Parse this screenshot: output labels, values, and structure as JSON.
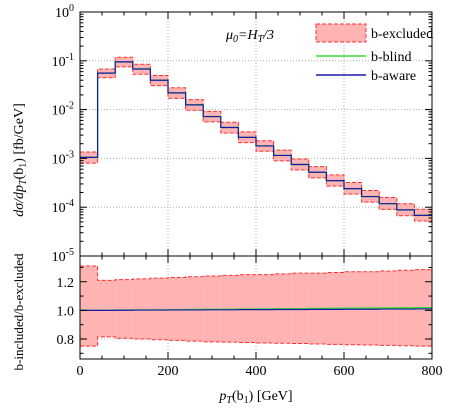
{
  "chart_data": [
    {
      "type": "line",
      "panel": "main",
      "yscale": "log",
      "ylabel": "dσ/dp_T(b_1) [fb/GeV]",
      "annotation": "μ0=HT/3",
      "xlim": [
        0,
        800
      ],
      "ylim": [
        1e-05,
        1
      ],
      "y_tick_labels": [
        "10^-5",
        "10^-4",
        "10^-3",
        "10^-2",
        "10^-1",
        "10^0"
      ],
      "grid": true,
      "legend_position": "top-right",
      "x_bins": [
        0,
        40,
        80,
        120,
        160,
        200,
        240,
        280,
        320,
        360,
        400,
        440,
        480,
        520,
        560,
        600,
        640,
        680,
        720,
        760,
        800
      ],
      "series": [
        {
          "name": "b-excluded",
          "style": "band",
          "color": "#ffb3b3",
          "edge_color": "#ff3030",
          "central": [
            0.00105,
            0.056,
            0.095,
            0.068,
            0.04,
            0.022,
            0.0125,
            0.0072,
            0.0043,
            0.0027,
            0.0018,
            0.00115,
            0.00075,
            0.00052,
            0.00035,
            0.00024,
            0.000165,
            0.000118,
            8.8e-05,
            6.8e-05
          ],
          "upper": [
            0.00135,
            0.068,
            0.118,
            0.085,
            0.05,
            0.028,
            0.016,
            0.0092,
            0.0055,
            0.0035,
            0.0023,
            0.00148,
            0.00097,
            0.00068,
            0.00046,
            0.00032,
            0.00022,
            0.000158,
            0.000118,
            9.1e-05
          ],
          "lower": [
            0.0008,
            0.045,
            0.075,
            0.053,
            0.031,
            0.017,
            0.0097,
            0.0056,
            0.0033,
            0.0021,
            0.0014,
            0.00089,
            0.00058,
            0.0004,
            0.00027,
            0.000185,
            0.000127,
            9e-05,
            6.7e-05,
            5.2e-05
          ]
        },
        {
          "name": "b-blind",
          "style": "step",
          "color": "#33dd33",
          "values": [
            0.00105,
            0.056,
            0.095,
            0.068,
            0.04,
            0.022,
            0.0125,
            0.0072,
            0.0043,
            0.0027,
            0.0018,
            0.00115,
            0.00075,
            0.00052,
            0.00035,
            0.00024,
            0.000165,
            0.000118,
            8.8e-05,
            6.8e-05
          ]
        },
        {
          "name": "b-aware",
          "style": "step",
          "color": "#1a1aaa",
          "values": [
            0.00105,
            0.056,
            0.095,
            0.068,
            0.04,
            0.022,
            0.0125,
            0.0072,
            0.0043,
            0.0027,
            0.0018,
            0.00115,
            0.00075,
            0.00052,
            0.00035,
            0.00024,
            0.000165,
            0.000118,
            8.8e-05,
            6.8e-05
          ]
        }
      ]
    },
    {
      "type": "line",
      "panel": "ratio",
      "xlabel": "p_T(b_1) [GeV]",
      "ylabel": "b-included/b-excluded",
      "xlim": [
        0,
        800
      ],
      "ylim": [
        0.66,
        1.38
      ],
      "x_ticks": [
        0,
        200,
        400,
        600,
        800
      ],
      "y_ticks": [
        0.8,
        1.0,
        1.2
      ],
      "grid": true,
      "x_bins": [
        0,
        40,
        80,
        120,
        160,
        200,
        240,
        280,
        320,
        360,
        400,
        440,
        480,
        520,
        560,
        600,
        640,
        680,
        720,
        760,
        800
      ],
      "series": [
        {
          "name": "b-excluded",
          "style": "band",
          "color": "#ffb3b3",
          "edge_color": "#ff3030",
          "upper": [
            1.31,
            1.21,
            1.215,
            1.22,
            1.225,
            1.23,
            1.235,
            1.24,
            1.245,
            1.25,
            1.25,
            1.255,
            1.26,
            1.26,
            1.265,
            1.27,
            1.27,
            1.275,
            1.28,
            1.285
          ],
          "lower": [
            0.75,
            0.815,
            0.805,
            0.8,
            0.795,
            0.79,
            0.785,
            0.78,
            0.778,
            0.775,
            0.772,
            0.77,
            0.768,
            0.765,
            0.762,
            0.76,
            0.758,
            0.755,
            0.753,
            0.75
          ]
        },
        {
          "name": "b-blind",
          "style": "step",
          "color": "#33dd33",
          "values": [
            1.0,
            1.0,
            1.002,
            1.003,
            1.004,
            1.005,
            1.006,
            1.007,
            1.008,
            1.009,
            1.01,
            1.011,
            1.012,
            1.013,
            1.014,
            1.015,
            1.016,
            1.017,
            1.018,
            1.019
          ]
        },
        {
          "name": "b-aware",
          "style": "step",
          "color": "#1a1aaa",
          "values": [
            1.0,
            1.0,
            1.001,
            1.002,
            1.002,
            1.003,
            1.003,
            1.004,
            1.004,
            1.005,
            1.005,
            1.006,
            1.006,
            1.007,
            1.007,
            1.008,
            1.008,
            1.009,
            1.009,
            1.01
          ]
        }
      ]
    }
  ],
  "labels": {
    "main_ylabel_prefix": "dσ/dp",
    "main_ylabel_sub": "T",
    "main_ylabel_paren": "(b",
    "main_ylabel_paren_sub": "1",
    "main_ylabel_unit": ") [fb/GeV]",
    "ratio_ylabel": "b-included/b-excluded",
    "xlabel_p": "p",
    "xlabel_sub": "T",
    "xlabel_paren": "(b",
    "xlabel_paren_sub": "1",
    "xlabel_unit": ") [GeV]",
    "annot_mu": "μ",
    "annot_mu_sub": "0",
    "annot_eq": "=H",
    "annot_h_sub": "T",
    "annot_div": "/3"
  }
}
